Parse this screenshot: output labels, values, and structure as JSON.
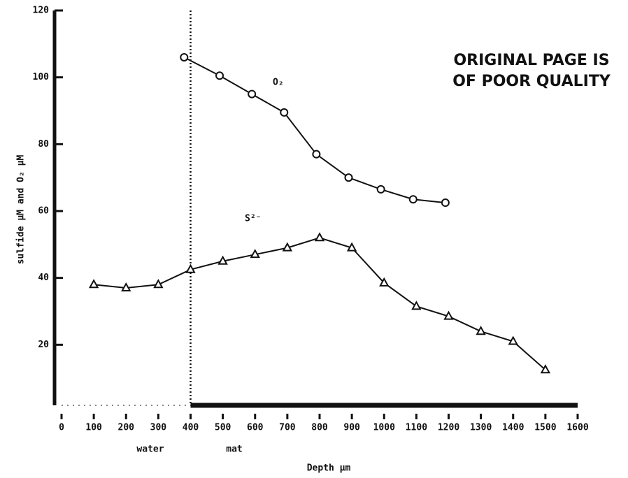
{
  "chart_data": {
    "type": "line",
    "xlabel": "Depth µm",
    "ylabel": "sulfide µM and O₂ µM",
    "xlim": [
      0,
      1600
    ],
    "xticks": [
      0,
      100,
      200,
      300,
      400,
      500,
      600,
      700,
      800,
      900,
      1000,
      1100,
      1200,
      1300,
      1400,
      1500,
      1600
    ],
    "ylim": [
      0,
      120
    ],
    "yticks": [
      20,
      40,
      60,
      80,
      100,
      120
    ],
    "boundary_x": 400,
    "annotations": [
      "water",
      "mat",
      "ORIGINAL PAGE IS",
      "OF POOR QUALITY"
    ],
    "series": [
      {
        "name": "O₂",
        "color": "#111111",
        "marker": "circle",
        "x": [
          380,
          490,
          590,
          690,
          790,
          890,
          990,
          1090,
          1190
        ],
        "values": [
          106,
          100.5,
          95,
          89.5,
          77,
          70,
          66.5,
          63.5,
          62.5
        ]
      },
      {
        "name": "S²⁻",
        "color": "#111111",
        "marker": "triangle",
        "x": [
          100,
          200,
          300,
          400,
          500,
          600,
          700,
          800,
          900,
          1000,
          1100,
          1200,
          1300,
          1400,
          1500
        ],
        "values": [
          38,
          37,
          38,
          42.5,
          45,
          47,
          49,
          52,
          49,
          38.5,
          31.5,
          28.5,
          24,
          21,
          12.5
        ]
      }
    ]
  }
}
